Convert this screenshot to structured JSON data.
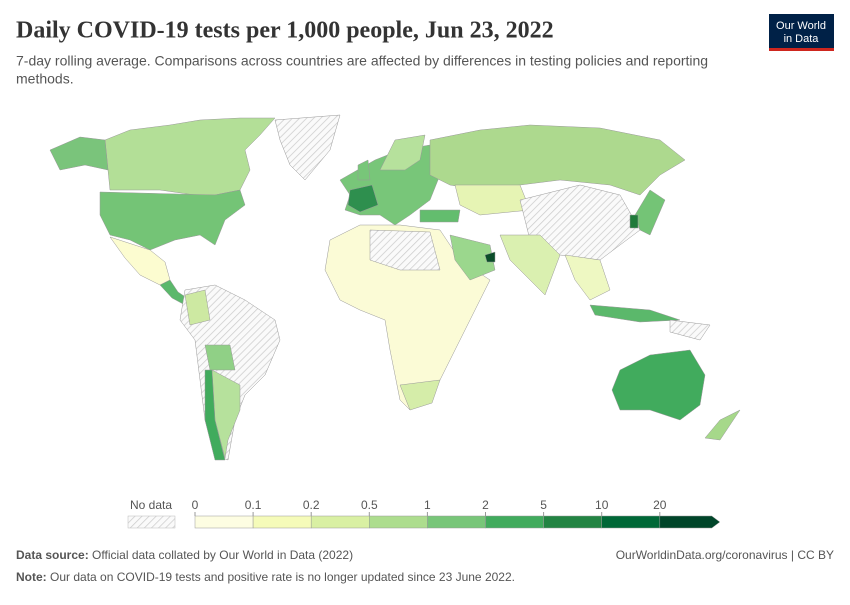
{
  "header": {
    "title": "Daily COVID-19 tests per 1,000 people, Jun 23, 2022",
    "subtitle_lines": [
      "7-day rolling average. Comparisons across countries are affected by differences in testing policies and reporting",
      "methods."
    ]
  },
  "logo": [
    "Our World",
    "in Data"
  ],
  "legend": {
    "no_data_label": "No data",
    "ticks": [
      0,
      0.1,
      0.2,
      0.5,
      1,
      2,
      5,
      10,
      20
    ],
    "colors": [
      "#fdfde2",
      "#f5fbb9",
      "#d9f0a3",
      "#addd8e",
      "#78c679",
      "#41ab5d",
      "#238443",
      "#006837",
      "#004529"
    ]
  },
  "footer": {
    "source_label": "Data source:",
    "source": "Official data collated by Our World in Data (2022)",
    "url": "OurWorldinData.org/coronavirus | CC BY",
    "note_label": "Note:",
    "note": "Our data on COVID-19 tests and positive rate is no longer updated since 23 June 2022."
  }
}
